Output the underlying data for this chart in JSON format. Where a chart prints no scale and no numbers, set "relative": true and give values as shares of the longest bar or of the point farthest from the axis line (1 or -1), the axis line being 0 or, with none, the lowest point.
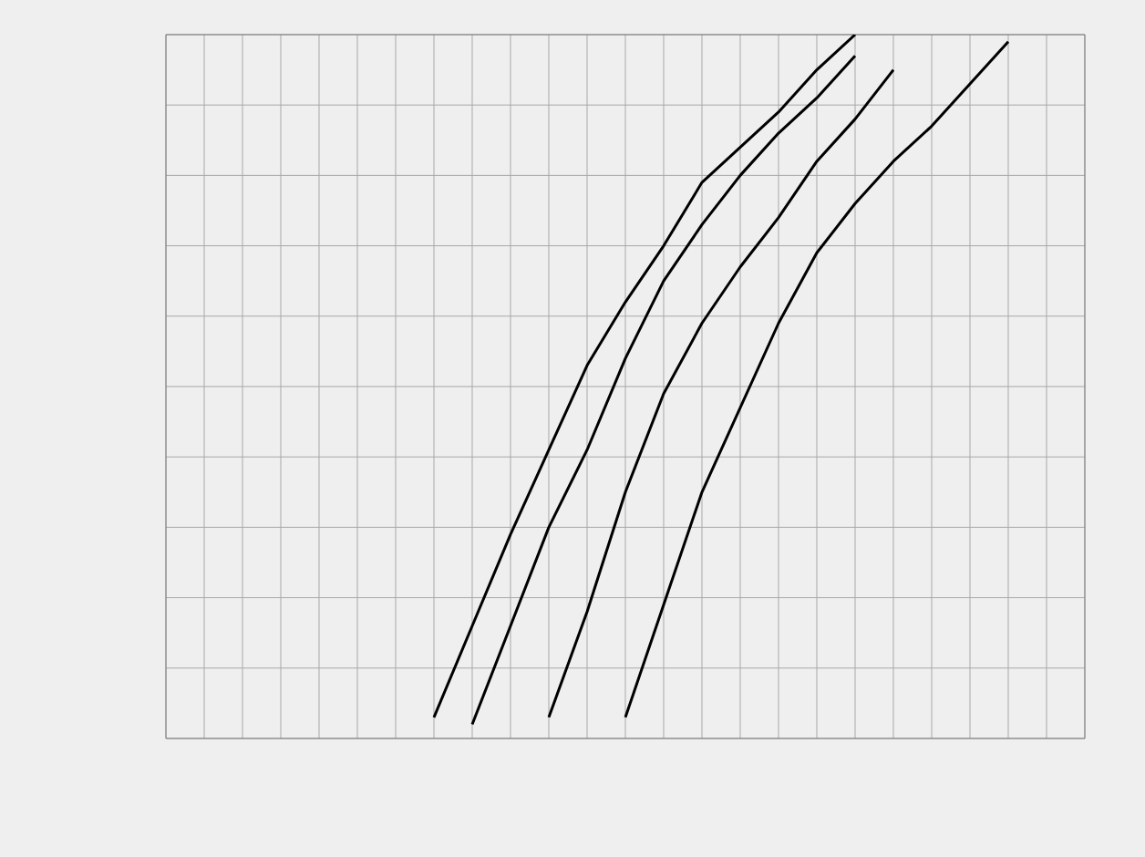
{
  "chart_data": {
    "type": "line",
    "relative": true,
    "grid": true,
    "marker": "none",
    "line_style": "solid",
    "categories": [
      null,
      null,
      null,
      null,
      null,
      null,
      null,
      null,
      null,
      null,
      null,
      null,
      null,
      null,
      null,
      null,
      null,
      null,
      null,
      null,
      null,
      null,
      null,
      null,
      null
    ],
    "series": [
      {
        "color": "#000000",
        "values": [
          null,
          null,
          null,
          null,
          null,
          null,
          null,
          0.03,
          0.16,
          0.29,
          0.41,
          0.53,
          0.62,
          0.7,
          0.79,
          0.84,
          0.89,
          0.95,
          1.0,
          null,
          null,
          null,
          null,
          null,
          null
        ]
      },
      {
        "color": "#000000",
        "values": [
          null,
          null,
          null,
          null,
          null,
          null,
          null,
          null,
          0.02,
          0.16,
          0.3,
          0.41,
          0.54,
          0.65,
          0.73,
          0.8,
          0.86,
          0.91,
          0.97,
          null,
          null,
          null,
          null,
          null,
          null
        ]
      },
      {
        "color": "#000000",
        "values": [
          null,
          null,
          null,
          null,
          null,
          null,
          null,
          null,
          null,
          null,
          0.03,
          0.18,
          0.35,
          0.49,
          0.59,
          0.67,
          0.74,
          0.82,
          0.88,
          0.95,
          null,
          null,
          null,
          null,
          null
        ]
      },
      {
        "color": "#000000",
        "values": [
          null,
          null,
          null,
          null,
          null,
          null,
          null,
          null,
          null,
          null,
          null,
          null,
          0.03,
          0.19,
          0.35,
          0.47,
          0.59,
          0.69,
          0.76,
          0.82,
          0.87,
          0.93,
          0.99,
          null,
          null
        ]
      }
    ]
  }
}
